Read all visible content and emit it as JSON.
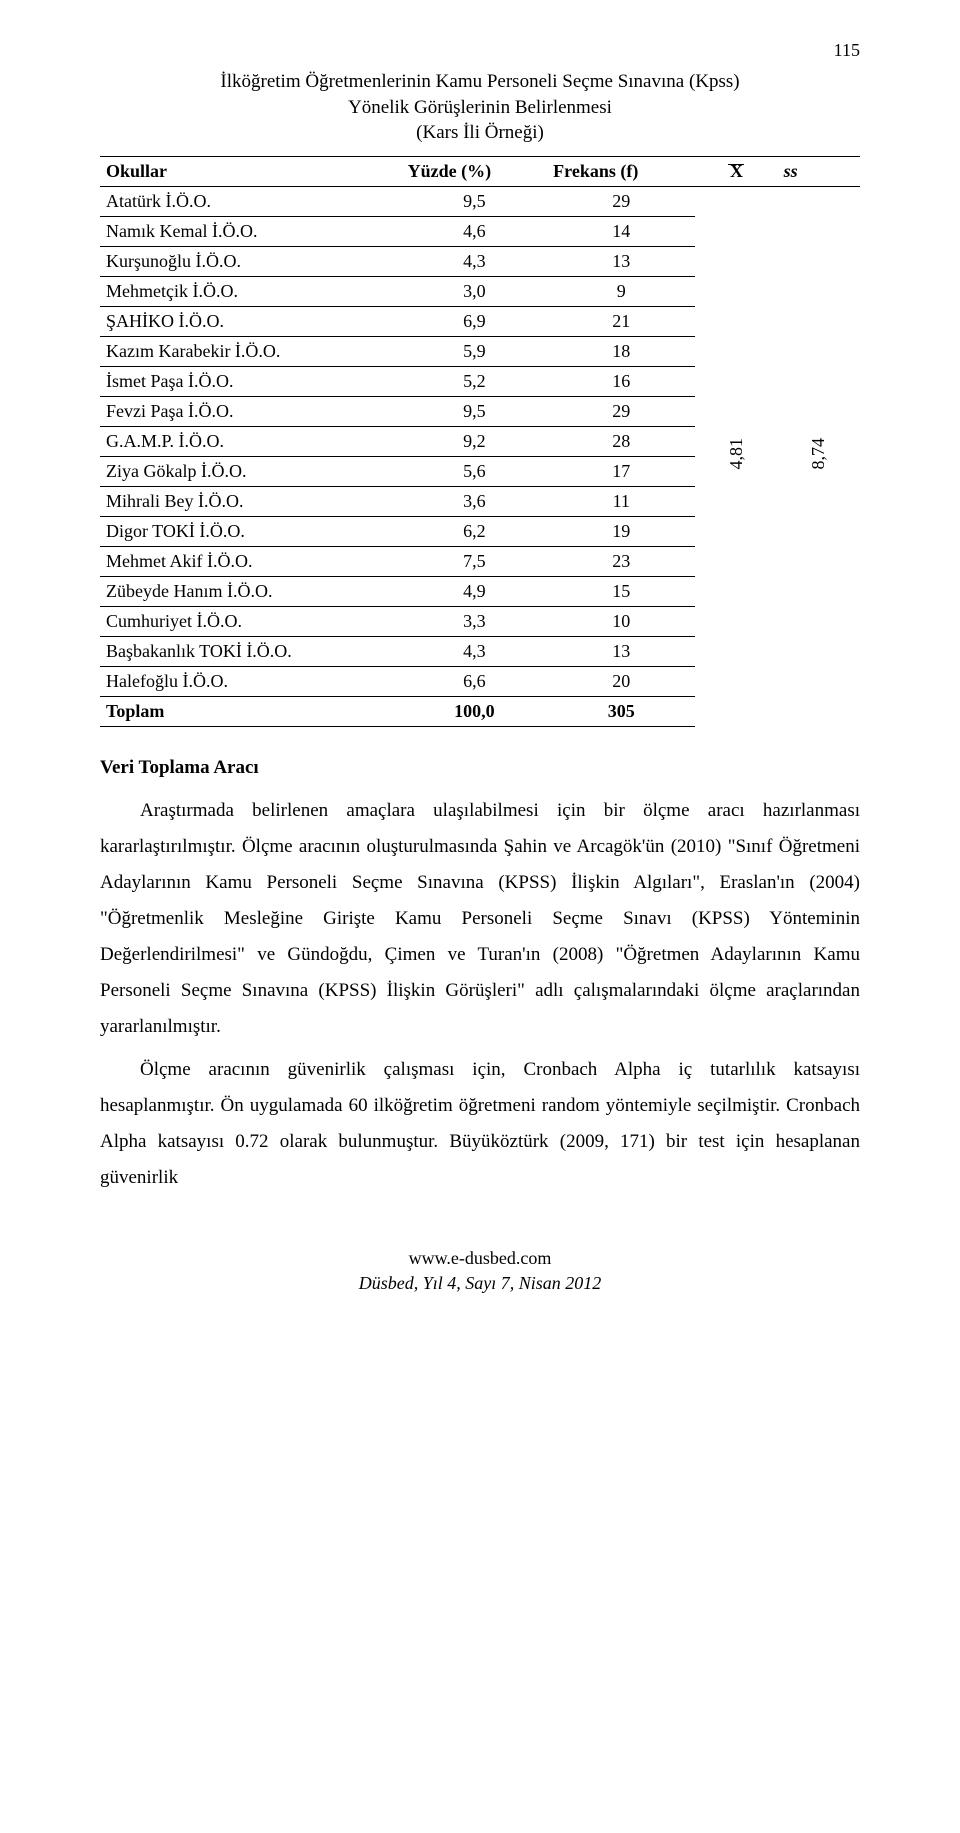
{
  "page_number": "115",
  "title_lines": [
    "İlköğretim Öğretmenlerinin Kamu Personeli Seçme Sınavına (Kpss)",
    "Yönelik Görüşlerinin Belirlenmesi",
    "(Kars İli Örneği)"
  ],
  "table": {
    "headers": {
      "col1": "Okullar",
      "col2": "Yüzde (%)",
      "col3": "Frekans (f)",
      "col4_symbol": "X",
      "col5": "ss"
    },
    "rows": [
      {
        "name": "Atatürk İ.Ö.O.",
        "pct": "9,5",
        "freq": "29"
      },
      {
        "name": "Namık Kemal İ.Ö.O.",
        "pct": "4,6",
        "freq": "14"
      },
      {
        "name": "Kurşunoğlu İ.Ö.O.",
        "pct": "4,3",
        "freq": "13"
      },
      {
        "name": "Mehmetçik İ.Ö.O.",
        "pct": "3,0",
        "freq": "9"
      },
      {
        "name": "ŞAHİKO İ.Ö.O.",
        "pct": "6,9",
        "freq": "21"
      },
      {
        "name": "Kazım Karabekir İ.Ö.O.",
        "pct": "5,9",
        "freq": "18"
      },
      {
        "name": "İsmet Paşa İ.Ö.O.",
        "pct": "5,2",
        "freq": "16"
      },
      {
        "name": "Fevzi Paşa İ.Ö.O.",
        "pct": "9,5",
        "freq": "29"
      },
      {
        "name": "G.A.M.P. İ.Ö.O.",
        "pct": "9,2",
        "freq": "28"
      },
      {
        "name": "Ziya Gökalp İ.Ö.O.",
        "pct": "5,6",
        "freq": "17"
      },
      {
        "name": "Mihrali Bey İ.Ö.O.",
        "pct": "3,6",
        "freq": "11"
      },
      {
        "name": "Digor TOKİ İ.Ö.O.",
        "pct": "6,2",
        "freq": "19"
      },
      {
        "name": "Mehmet Akif İ.Ö.O.",
        "pct": "7,5",
        "freq": "23"
      },
      {
        "name": "Zübeyde Hanım İ.Ö.O.",
        "pct": "4,9",
        "freq": "15"
      },
      {
        "name": "Cumhuriyet İ.Ö.O.",
        "pct": "3,3",
        "freq": "10"
      },
      {
        "name": "Başbakanlık TOKİ İ.Ö.O.",
        "pct": "4,3",
        "freq": "13"
      },
      {
        "name": "Halefoğlu İ.Ö.O.",
        "pct": "6,6",
        "freq": "20"
      }
    ],
    "total": {
      "name": "Toplam",
      "pct": "100,0",
      "freq": "305"
    },
    "mean": "4,81",
    "sd": "8,74"
  },
  "section_heading": "Veri Toplama Aracı",
  "paragraphs": [
    "Araştırmada belirlenen amaçlara ulaşılabilmesi için bir ölçme aracı hazırlanması kararlaştırılmıştır. Ölçme aracının oluşturulmasında Şahin ve Arcagök'ün (2010) \"Sınıf Öğretmeni Adaylarının Kamu Personeli Seçme Sınavına (KPSS) İlişkin Algıları\", Eraslan'ın (2004) \"Öğretmenlik Mesleğine Girişte Kamu Personeli Seçme Sınavı (KPSS) Yönteminin Değerlendirilmesi\" ve Gündoğdu, Çimen ve Turan'ın (2008) \"Öğretmen Adaylarının Kamu Personeli Seçme Sınavına (KPSS) İlişkin Görüşleri\" adlı çalışmalarındaki ölçme araçlarından yararlanılmıştır.",
    "Ölçme aracının güvenirlik çalışması için, Cronbach Alpha iç tutarlılık katsayısı hesaplanmıştır. Ön uygulamada 60 ilköğretim öğretmeni random yöntemiyle seçilmiştir. Cronbach Alpha katsayısı 0.72 olarak bulunmuştur. Büyüköztürk (2009, 171) bir test için hesaplanan güvenirlik"
  ],
  "footer": {
    "site": "www.e-dusbed.com",
    "journal": "Düsbed, Yıl 4, Sayı 7, Nisan 2012"
  }
}
